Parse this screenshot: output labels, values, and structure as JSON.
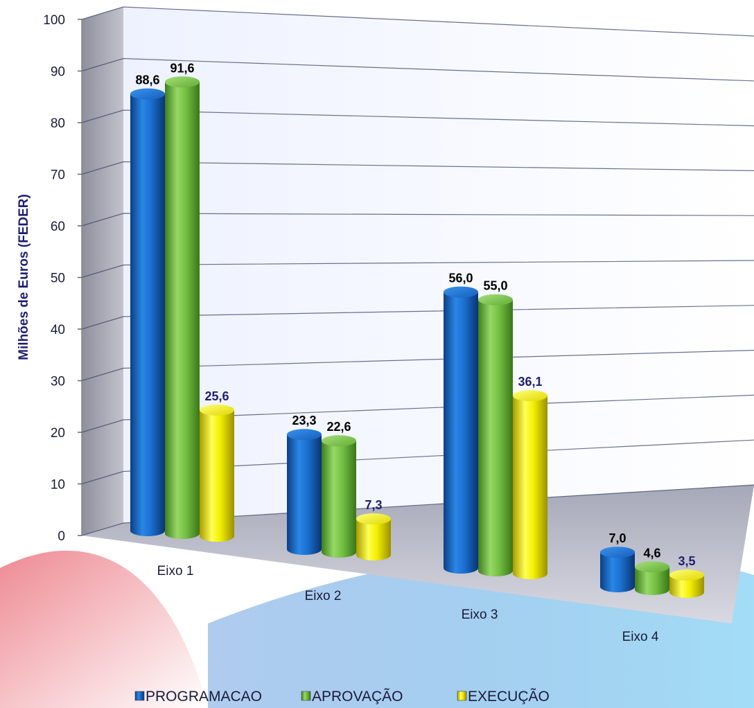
{
  "chart_data": {
    "type": "bar",
    "ylabel": "Milhões de Euros (FEDER)",
    "xlabel": "",
    "ylim": [
      0,
      100
    ],
    "yticks": [
      0,
      10,
      20,
      30,
      40,
      50,
      60,
      70,
      80,
      90,
      100
    ],
    "grid": true,
    "legend_position": "bottom",
    "categories": [
      "Eixo 1",
      "Eixo 2",
      "Eixo 3",
      "Eixo 4"
    ],
    "series": [
      {
        "name": "PROGRAMACAO",
        "color": "#1a6fd0",
        "label_color": "#000000",
        "values": [
          88.6,
          23.3,
          56.0,
          7.0
        ],
        "labels": [
          "88,6",
          "23,3",
          "56,0",
          "7,0"
        ]
      },
      {
        "name": "APROVAÇÃO",
        "color": "#74c043",
        "label_color": "#000000",
        "values": [
          91.6,
          22.6,
          55.0,
          4.6
        ],
        "labels": [
          "91,6",
          "22,6",
          "55,0",
          "4,6"
        ]
      },
      {
        "name": "EXECUÇÃO",
        "color": "#f2ee00",
        "label_color": "#1f1f6e",
        "values": [
          25.6,
          7.3,
          36.1,
          3.5
        ],
        "labels": [
          "25,6",
          "7,3",
          "36,1",
          "3,5"
        ]
      }
    ]
  }
}
